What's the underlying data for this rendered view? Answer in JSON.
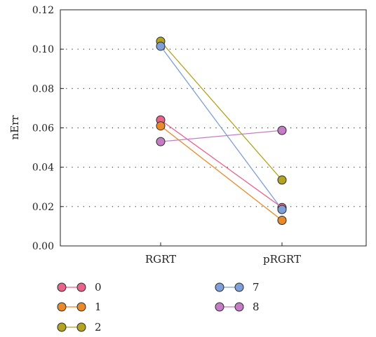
{
  "chart_data": {
    "type": "line",
    "title": "",
    "xlabel": "",
    "ylabel": "nErr",
    "categories": [
      "RGRT",
      "pRGRT"
    ],
    "ylim": [
      0,
      0.12
    ],
    "yticks": [
      "0.00",
      "0.02",
      "0.04",
      "0.06",
      "0.08",
      "0.10",
      "0.12"
    ],
    "grid": "horizontal dotted",
    "legend_position": "bottom",
    "series": [
      {
        "name": "0",
        "values": [
          0.064,
          0.0195
        ],
        "color": "#e8638a"
      },
      {
        "name": "1",
        "values": [
          0.061,
          0.013
        ],
        "color": "#e98a2a"
      },
      {
        "name": "2",
        "values": [
          0.104,
          0.0335
        ],
        "color": "#b3a31e"
      },
      {
        "name": "7",
        "values": [
          0.1015,
          0.0185
        ],
        "color": "#7e9fd8"
      },
      {
        "name": "8",
        "values": [
          0.053,
          0.0587
        ],
        "color": "#c47dc4"
      }
    ]
  }
}
